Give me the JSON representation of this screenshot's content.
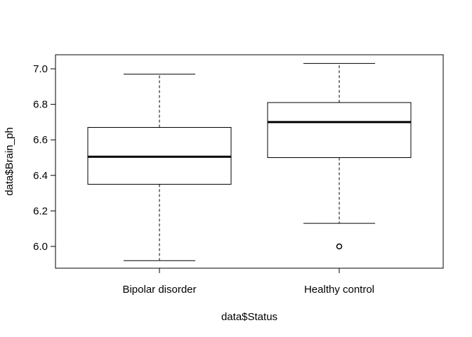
{
  "chart_data": {
    "type": "boxplot",
    "xlabel": "data$Status",
    "ylabel": "data$Brain_ph",
    "ylim": [
      5.88,
      7.09
    ],
    "yticks": [
      {
        "value": 6.0,
        "label": "6.0"
      },
      {
        "value": 6.2,
        "label": "6.2"
      },
      {
        "value": 6.4,
        "label": "6.4"
      },
      {
        "value": 6.6,
        "label": "6.6"
      },
      {
        "value": 6.8,
        "label": "6.8"
      },
      {
        "value": 7.0,
        "label": "7.0"
      }
    ],
    "categories": [
      "Bipolar disorder",
      "Healthy control"
    ],
    "boxes": [
      {
        "category": "Bipolar disorder",
        "whisker_low": 5.92,
        "q1": 6.35,
        "median": 6.505,
        "q3": 6.67,
        "whisker_high": 6.97,
        "outliers": []
      },
      {
        "category": "Healthy control",
        "whisker_low": 6.13,
        "q1": 6.5,
        "median": 6.7,
        "q3": 6.81,
        "whisker_high": 7.03,
        "outliers": [
          6.0
        ]
      }
    ],
    "grid": false,
    "legend": "none"
  }
}
